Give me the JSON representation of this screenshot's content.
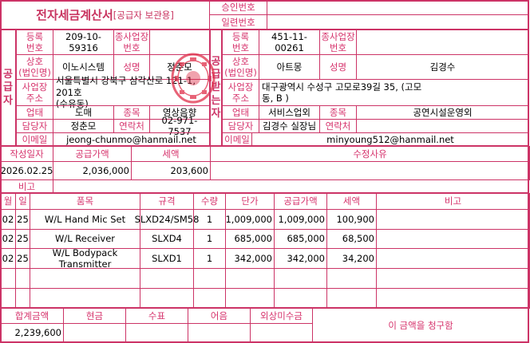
{
  "header": {
    "title": "전자세금계산서",
    "title_suffix": "[공급자 보관용]",
    "approval_label": "승인번호",
    "approval_value": "",
    "serial_label": "일련번호",
    "serial_value": ""
  },
  "supplier": {
    "side_label": "공\n급\n자",
    "reg_label": "등록\n번호",
    "reg_no": "209-10-59316",
    "branch_label": "종사업장\n번호",
    "branch_no": "",
    "name_label": "상호\n(법인명)",
    "name": "이노시스템",
    "rep_label": "성명",
    "rep": "정춘모",
    "addr_label": "사업장\n주소",
    "addr": "서울특별시 강북구 삼각산로 121-1, 201호\n(수유동)",
    "type_label": "업태",
    "type": "도매",
    "item_label": "종목",
    "item": "영상음향",
    "contact_label": "담당자",
    "contact": "정춘모",
    "phone_label": "연락처",
    "phone": "02-971-7537",
    "email_label": "이메일",
    "email": "jeong-chunmo@hanmail.net"
  },
  "buyer": {
    "side_label": "공\n급\n받\n는\n자",
    "reg_label": "등록\n번호",
    "reg_no": "451-11-00261",
    "branch_label": "종사업장\n번호",
    "branch_no": "",
    "name_label": "상호\n(법인명)",
    "name": "아트몽",
    "rep_label": "성명",
    "rep": "김경수",
    "addr_label": "사업장\n주소",
    "addr": "대구광역시 수성구 고모로39길 35, (고모\n동, B )",
    "type_label": "업태",
    "type": "서비스업외",
    "item_label": "종목",
    "item": "공연시설운영외",
    "contact_label": "담당자",
    "contact": "김경수 실장님",
    "phone_label": "연락처",
    "phone": "",
    "email_label": "이메일",
    "email": "minyoung512@hanmail.net"
  },
  "summary": {
    "date_label": "작성일자",
    "supply_label": "공급가액",
    "tax_label": "세액",
    "reason_label": "수정사유",
    "date": "2026.02.25",
    "supply": "2,036,000",
    "tax": "203,600",
    "reason": "",
    "note_label": "비고",
    "note": ""
  },
  "items": {
    "headers": [
      "월",
      "일",
      "품목",
      "규격",
      "수량",
      "단가",
      "공급가액",
      "세액",
      "비고"
    ],
    "rows": [
      [
        "02",
        "25",
        "W/L Hand Mic Set",
        "SLXD24/SM58",
        "1",
        "1,009,000",
        "1,009,000",
        "100,900",
        ""
      ],
      [
        "02",
        "25",
        "W/L Receiver",
        "SLXD4",
        "1",
        "685,000",
        "685,000",
        "68,500",
        ""
      ],
      [
        "02",
        "25",
        "W/L Bodypack Transmitter",
        "SLXD1",
        "1",
        "342,000",
        "342,000",
        "34,200",
        ""
      ],
      [
        "",
        "",
        "",
        "",
        "",
        "",
        "",
        "",
        ""
      ],
      [
        "",
        "",
        "",
        "",
        "",
        "",
        "",
        "",
        ""
      ]
    ]
  },
  "totals": {
    "total_label": "합계금액",
    "cash_label": "현금",
    "check_label": "수표",
    "note_label": "어음",
    "credit_label": "외상미수금",
    "total": "2,239,600",
    "cash": "",
    "check": "",
    "note": "",
    "credit": "",
    "claim_text": "이 금액을 청구함"
  },
  "colors": {
    "border": "#cc3366",
    "label": "#d6336c",
    "stamp": "#e0304a"
  }
}
